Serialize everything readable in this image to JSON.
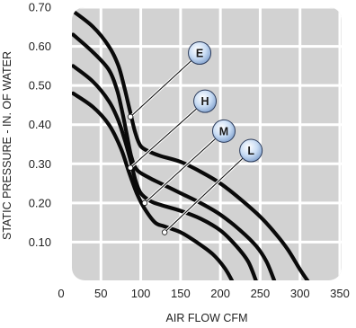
{
  "chart_data": {
    "type": "line",
    "xlabel": "AIR FLOW CFM",
    "ylabel": "STATIC PRESSURE - IN. OF WATER",
    "xlim": [
      0,
      350
    ],
    "ylim": [
      0,
      0.7
    ],
    "x_ticks": [
      "0",
      "50",
      "100",
      "150",
      "200",
      "250",
      "300",
      "350"
    ],
    "y_ticks": [
      "0.10",
      "0.20",
      "0.30",
      "0.40",
      "0.50",
      "0.60",
      "0.70"
    ],
    "grid": true,
    "series": [
      {
        "name": "E",
        "points": [
          [
            15,
            0.69
          ],
          [
            40,
            0.65
          ],
          [
            60,
            0.6
          ],
          [
            72,
            0.55
          ],
          [
            80,
            0.49
          ],
          [
            87,
            0.43
          ],
          [
            93,
            0.38
          ],
          [
            100,
            0.345
          ],
          [
            112,
            0.33
          ],
          [
            125,
            0.32
          ],
          [
            150,
            0.305
          ],
          [
            175,
            0.28
          ],
          [
            200,
            0.25
          ],
          [
            225,
            0.21
          ],
          [
            250,
            0.165
          ],
          [
            270,
            0.12
          ],
          [
            285,
            0.08
          ],
          [
            300,
            0.03
          ],
          [
            310,
            0.0
          ]
        ]
      },
      {
        "name": "H",
        "points": [
          [
            15,
            0.63
          ],
          [
            40,
            0.585
          ],
          [
            60,
            0.54
          ],
          [
            70,
            0.49
          ],
          [
            76,
            0.44
          ],
          [
            82,
            0.38
          ],
          [
            88,
            0.32
          ],
          [
            95,
            0.285
          ],
          [
            110,
            0.265
          ],
          [
            125,
            0.25
          ],
          [
            150,
            0.225
          ],
          [
            175,
            0.2
          ],
          [
            200,
            0.17
          ],
          [
            225,
            0.13
          ],
          [
            245,
            0.09
          ],
          [
            258,
            0.05
          ],
          [
            268,
            0.0
          ]
        ]
      },
      {
        "name": "M",
        "points": [
          [
            15,
            0.55
          ],
          [
            40,
            0.51
          ],
          [
            60,
            0.46
          ],
          [
            72,
            0.41
          ],
          [
            80,
            0.36
          ],
          [
            87,
            0.31
          ],
          [
            93,
            0.26
          ],
          [
            100,
            0.225
          ],
          [
            112,
            0.205
          ],
          [
            125,
            0.195
          ],
          [
            150,
            0.18
          ],
          [
            175,
            0.16
          ],
          [
            200,
            0.13
          ],
          [
            220,
            0.09
          ],
          [
            235,
            0.05
          ],
          [
            245,
            0.0
          ]
        ]
      },
      {
        "name": "L",
        "points": [
          [
            15,
            0.48
          ],
          [
            40,
            0.445
          ],
          [
            60,
            0.4
          ],
          [
            75,
            0.34
          ],
          [
            85,
            0.28
          ],
          [
            95,
            0.225
          ],
          [
            105,
            0.185
          ],
          [
            118,
            0.15
          ],
          [
            130,
            0.14
          ],
          [
            150,
            0.125
          ],
          [
            170,
            0.1
          ],
          [
            190,
            0.07
          ],
          [
            205,
            0.035
          ],
          [
            215,
            0.0
          ]
        ]
      }
    ],
    "labels": [
      "E",
      "H",
      "M",
      "L"
    ],
    "colors": {
      "plot_background": "#d2d2d2",
      "grid": "#ffffff",
      "line": "#0a0a0a",
      "badge_fill": "#a9c4e8",
      "badge_stroke": "#2a3a5a"
    }
  }
}
